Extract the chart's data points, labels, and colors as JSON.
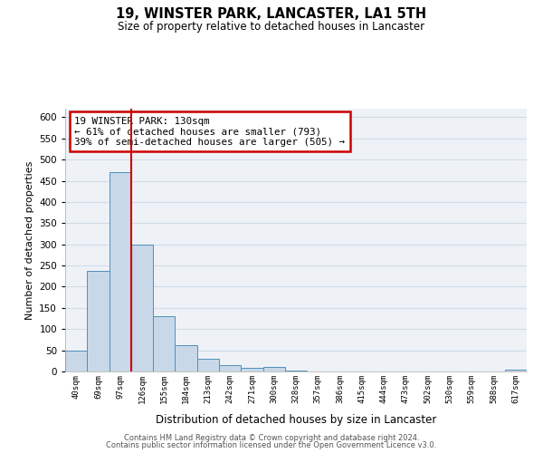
{
  "title": "19, WINSTER PARK, LANCASTER, LA1 5TH",
  "subtitle": "Size of property relative to detached houses in Lancaster",
  "xlabel": "Distribution of detached houses by size in Lancaster",
  "ylabel": "Number of detached properties",
  "bin_labels": [
    "40sqm",
    "69sqm",
    "97sqm",
    "126sqm",
    "155sqm",
    "184sqm",
    "213sqm",
    "242sqm",
    "271sqm",
    "300sqm",
    "328sqm",
    "357sqm",
    "386sqm",
    "415sqm",
    "444sqm",
    "473sqm",
    "502sqm",
    "530sqm",
    "559sqm",
    "588sqm",
    "617sqm"
  ],
  "bar_heights": [
    50,
    238,
    470,
    300,
    130,
    62,
    30,
    16,
    8,
    10,
    2,
    0,
    0,
    0,
    0,
    0,
    0,
    0,
    0,
    0,
    5
  ],
  "bar_color": "#c8d8e8",
  "bar_edge_color": "#5090b8",
  "ylim": [
    0,
    620
  ],
  "yticks": [
    0,
    50,
    100,
    150,
    200,
    250,
    300,
    350,
    400,
    450,
    500,
    550,
    600
  ],
  "vline_bin_index": 3,
  "vline_color": "#cc0000",
  "annotation_title": "19 WINSTER PARK: 130sqm",
  "annotation_line1": "← 61% of detached houses are smaller (793)",
  "annotation_line2": "39% of semi-detached houses are larger (505) →",
  "annotation_box_color": "#cc0000",
  "footer_line1": "Contains HM Land Registry data © Crown copyright and database right 2024.",
  "footer_line2": "Contains public sector information licensed under the Open Government Licence v3.0.",
  "grid_color": "#d0dce8",
  "background_color": "#eef2f7",
  "bar_width": 1.0
}
